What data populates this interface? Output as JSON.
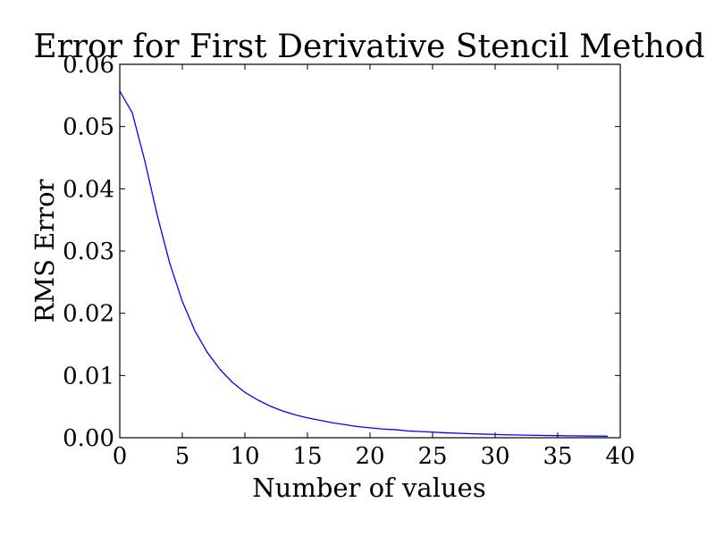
{
  "chart_data": {
    "type": "line",
    "title": "Error for First Derivative Stencil Method",
    "xlabel": "Number of values",
    "ylabel": "RMS Error",
    "xlim": [
      0,
      40
    ],
    "ylim": [
      0,
      0.06
    ],
    "xticks": [
      0,
      5,
      10,
      15,
      20,
      25,
      30,
      35,
      40
    ],
    "xtick_labels": [
      "0",
      "5",
      "10",
      "15",
      "20",
      "25",
      "30",
      "35",
      "40"
    ],
    "yticks": [
      0,
      0.01,
      0.02,
      0.03,
      0.04,
      0.05,
      0.06
    ],
    "ytick_labels": [
      "0.00",
      "0.01",
      "0.02",
      "0.03",
      "0.04",
      "0.05",
      "0.06"
    ],
    "grid": false,
    "line_color": "#0000ff",
    "series": [
      {
        "x": [
          0,
          1,
          2,
          3,
          4,
          5,
          6,
          7,
          8,
          9,
          10,
          11,
          12,
          13,
          14,
          15,
          16,
          17,
          18,
          19,
          20,
          21,
          22,
          23,
          24,
          25,
          26,
          27,
          28,
          29,
          30,
          31,
          32,
          33,
          34,
          35,
          36,
          37,
          38,
          39
        ],
        "values": [
          0.0557,
          0.0522,
          0.0445,
          0.0357,
          0.028,
          0.0219,
          0.0172,
          0.0137,
          0.011,
          0.0089,
          0.0073,
          0.0061,
          0.0051,
          0.0043,
          0.0037,
          0.0032,
          0.0028,
          0.0024,
          0.0021,
          0.0018,
          0.0016,
          0.0014,
          0.0013,
          0.0011,
          0.001,
          0.0009,
          0.0008,
          0.00072,
          0.00065,
          0.00058,
          0.00052,
          0.00047,
          0.00043,
          0.00039,
          0.00036,
          0.00033,
          0.0003,
          0.00028,
          0.00026,
          0.00024
        ]
      }
    ]
  }
}
